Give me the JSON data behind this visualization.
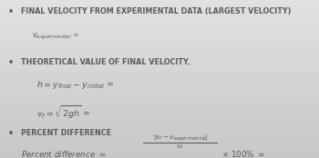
{
  "bg_color": "#d8d8d8",
  "text_color": "#5a5a5a",
  "bullet": "•",
  "section1_title": "FINAL VELOCITY FROM EXPERIMENTAL DATA (LARGEST VELOCITY)",
  "section2_title": "THEORETICAL VALUE OF FINAL VELOCITY.",
  "section3_title": "PERCENT DIFFERENCE",
  "figsize": [
    3.5,
    1.74
  ],
  "dpi": 100
}
